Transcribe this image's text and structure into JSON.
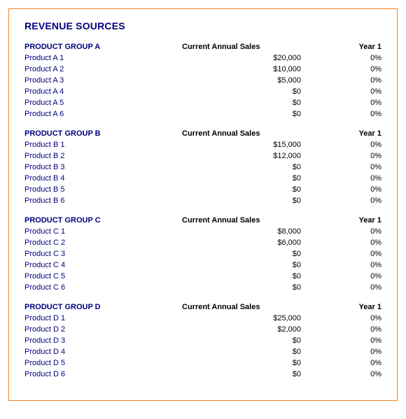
{
  "title": "REVENUE SOURCES",
  "col_sales_header": "Current Annual Sales",
  "col_year_header": "Year 1",
  "groups": [
    {
      "name": "PRODUCT GROUP A",
      "products": [
        {
          "name": "Product A 1",
          "sales": "$20,000",
          "year1": "0%"
        },
        {
          "name": "Product A 2",
          "sales": "$10,000",
          "year1": "0%"
        },
        {
          "name": "Product A 3",
          "sales": "$5,000",
          "year1": "0%"
        },
        {
          "name": "Product A 4",
          "sales": "$0",
          "year1": "0%"
        },
        {
          "name": "Product A 5",
          "sales": "$0",
          "year1": "0%"
        },
        {
          "name": "Product A 6",
          "sales": "$0",
          "year1": "0%"
        }
      ]
    },
    {
      "name": "PRODUCT GROUP B",
      "products": [
        {
          "name": "Product B 1",
          "sales": "$15,000",
          "year1": "0%"
        },
        {
          "name": "Product B 2",
          "sales": "$12,000",
          "year1": "0%"
        },
        {
          "name": "Product B 3",
          "sales": "$0",
          "year1": "0%"
        },
        {
          "name": "Product B 4",
          "sales": "$0",
          "year1": "0%"
        },
        {
          "name": "Product B 5",
          "sales": "$0",
          "year1": "0%"
        },
        {
          "name": "Product B 6",
          "sales": "$0",
          "year1": "0%"
        }
      ]
    },
    {
      "name": "PRODUCT GROUP C",
      "products": [
        {
          "name": "Product C 1",
          "sales": "$8,000",
          "year1": "0%"
        },
        {
          "name": "Product C 2",
          "sales": "$6,000",
          "year1": "0%"
        },
        {
          "name": "Product C 3",
          "sales": "$0",
          "year1": "0%"
        },
        {
          "name": "Product C 4",
          "sales": "$0",
          "year1": "0%"
        },
        {
          "name": "Product C 5",
          "sales": "$0",
          "year1": "0%"
        },
        {
          "name": "Product C 6",
          "sales": "$0",
          "year1": "0%"
        }
      ]
    },
    {
      "name": "PRODUCT GROUP D",
      "products": [
        {
          "name": "Product D 1",
          "sales": "$25,000",
          "year1": "0%"
        },
        {
          "name": "Product D 2",
          "sales": "$2,000",
          "year1": "0%"
        },
        {
          "name": "Product D 3",
          "sales": "$0",
          "year1": "0%"
        },
        {
          "name": "Product D 4",
          "sales": "$0",
          "year1": "0%"
        },
        {
          "name": "Product D 5",
          "sales": "$0",
          "year1": "0%"
        },
        {
          "name": "Product D 6",
          "sales": "$0",
          "year1": "0%"
        }
      ]
    }
  ],
  "colors": {
    "brand_blue": "#000080",
    "border_orange": "#f58220",
    "text_black": "#000000",
    "background": "#ffffff"
  }
}
